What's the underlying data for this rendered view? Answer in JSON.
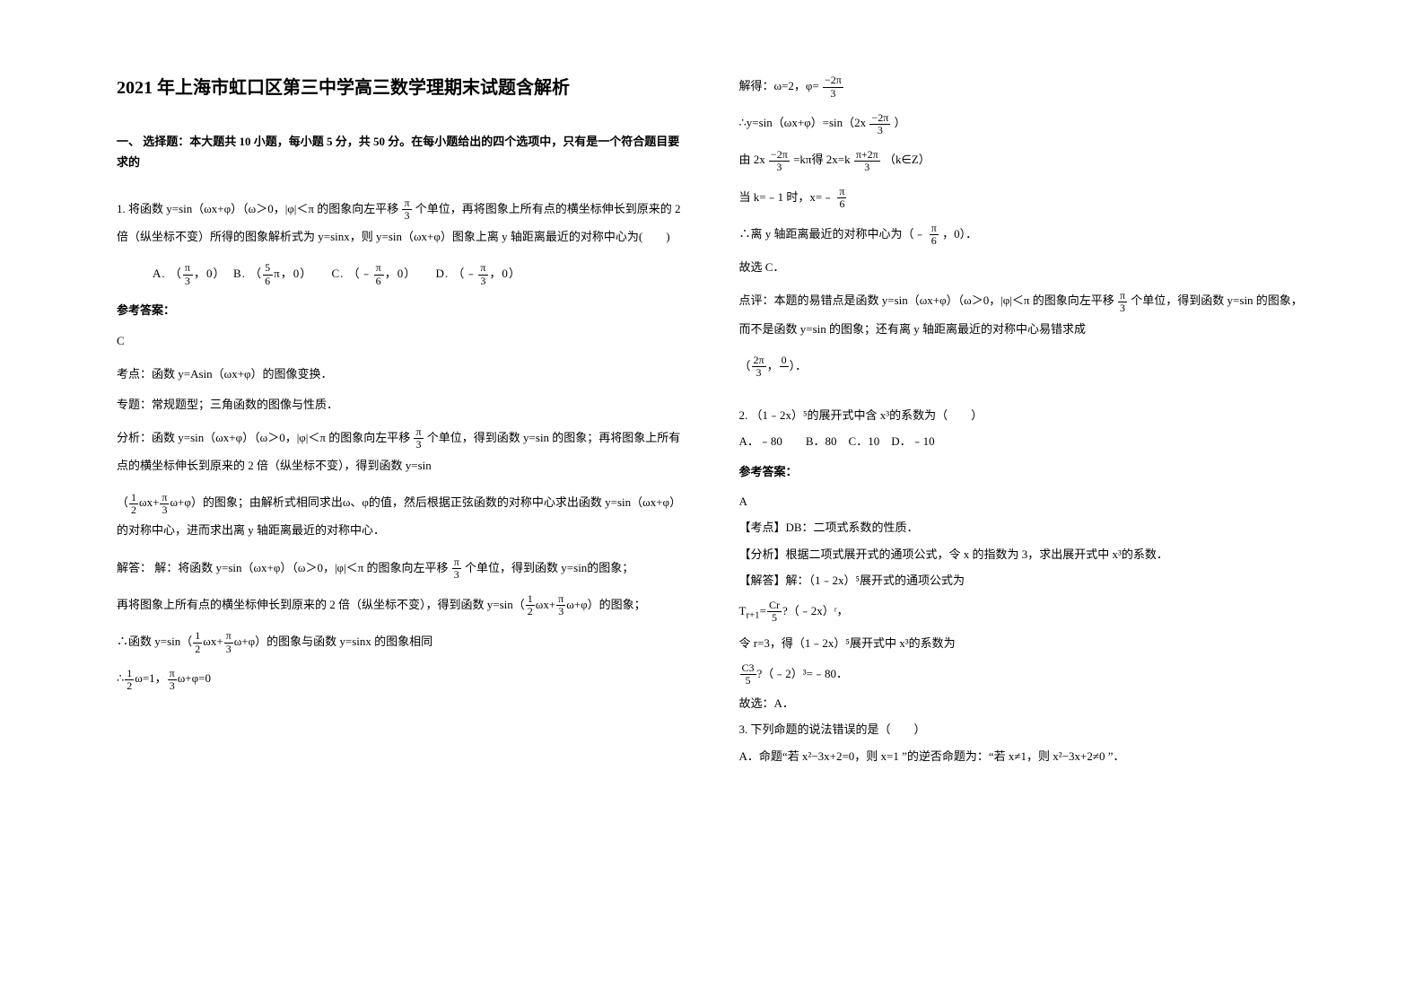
{
  "title": "2021 年上海市虹口区第三中学高三数学理期末试题含解析",
  "section1_header": "一、 选择题：本大题共 10 小题，每小题 5 分，共 50 分。在每小题给出的四个选项中，只有是一个符合题目要求的",
  "q1": {
    "stem_pre": "1. 将函数 y=sin（ωx+φ）（ω＞0，|φ|＜π 的图象向左平移",
    "stem_shift_num": "π",
    "stem_shift_den": "3",
    "stem_post": "个单位，再将图象上所有点的横坐标伸长到原来的 2 倍（纵坐标不变）所得的图象解析式为 y=sinx，则 y=sin（ωx+φ）图象上离 y 轴距离最近的对称中心为(　　)",
    "optA_pre": "A. （",
    "optA_num": "π",
    "optA_den": "3",
    "optA_post": "，0）",
    "optB_pre": "B. （",
    "optB_num": "5",
    "optB_den": "6",
    "optB_post": "π，0）",
    "optC_pre": "C. （﹣",
    "optC_num": "π",
    "optC_den": "6",
    "optC_post": "，0）",
    "optD_pre": "D. （﹣",
    "optD_num": "π",
    "optD_den": "3",
    "optD_post": "，0）",
    "answer_label": "参考答案：",
    "answer": "C",
    "kdian": "考点：函数 y=Asin（ωx+φ）的图像变换．",
    "zhuanti": "专题：常规题型；三角函数的图像与性质．",
    "fenxi_pre": "分析：函数 y=sin（ωx+φ）（ω＞0，|φ|＜π 的图象向左平移",
    "fenxi_num": "π",
    "fenxi_den": "3",
    "fenxi_post": "个单位，得到函数 y=sin 的图象；再将图象上所有点的横坐标伸长到原来的 2 倍（纵坐标不变），得到函数 y=sin",
    "fenxi2_pre": "（",
    "fenxi2_a_num": "1",
    "fenxi2_a_den": "2",
    "fenxi2_mid": "ωx+",
    "fenxi2_b_num": "π",
    "fenxi2_b_den": "3",
    "fenxi2_post": "ω+φ）的图象；由解析式相同求出ω、φ的值，然后根据正弦函数的对称中心求出函数 y=sin（ωx+φ）的对称中心，进而求出离 y 轴距离最近的对称中心．",
    "jieda_pre": "解答： 解：将函数 y=sin（ωx+φ）（ω＞0，|φ|＜π 的图象向左平移",
    "jieda_num": "π",
    "jieda_den": "3",
    "jieda_post": "个单位，得到函数 y=sin的图象；",
    "jieda2_pre": "再将图象上所有点的横坐标伸长到原来的 2 倍（纵坐标不变），得到函数 y=sin（",
    "jieda2_a_num": "1",
    "jieda2_a_den": "2",
    "jieda2_mid": "ωx+",
    "jieda2_b_num": "π",
    "jieda2_b_den": "3",
    "jieda2_post": "ω+φ）的图象；",
    "jieda3_pre": "∴函数 y=sin（",
    "jieda3_a_num": "1",
    "jieda3_a_den": "2",
    "jieda3_mid": "ωx+",
    "jieda3_b_num": "π",
    "jieda3_b_den": "3",
    "jieda3_post": "ω+φ）的图象与函数 y=sinx 的图象相同",
    "jieda4_pre": "∴",
    "jieda4_a_num": "1",
    "jieda4_a_den": "2",
    "jieda4_mid": "ω=1，",
    "jieda4_b_num": "π",
    "jieda4_b_den": "3",
    "jieda4_post": "ω+φ=0"
  },
  "col2": {
    "l1_pre": "解得：ω=2，φ=",
    "l1_num": "−2π",
    "l1_den": "3",
    "l2_pre": "∴y=sin（ωx+φ）=sin（2x",
    "l2_num": "−2π",
    "l2_den": "3",
    "l2_post": "）",
    "l3_pre": "由 2x",
    "l3a_num": "−2π",
    "l3a_den": "3",
    "l3_mid": "=kπ得 2x=k",
    "l3b_num": "π+2π",
    "l3b_den": "3",
    "l3_post": "（k∈Z）",
    "l4_pre": "当 k=﹣1 时，x=﹣",
    "l4_num": "π",
    "l4_den": "6",
    "l5_pre": "∴离 y 轴距离最近的对称中心为（﹣",
    "l5_num": "π",
    "l5_den": "6",
    "l5_post": "，0）．",
    "guxuan": "故选 C．",
    "dianping_pre": "点评：本题的易错点是函数 y=sin（ωx+φ）（ω＞0，|φ|＜π 的图象向左平移",
    "dianping_num": "π",
    "dianping_den": "3",
    "dianping_post": "个单位，得到函数 y=sin 的图象，而不是函数 y=sin 的图象；还有离 y 轴距离最近的对称中心易错求成",
    "dianping2_pre": "（",
    "dianping2_num": "2π",
    "dianping2_den": "3",
    "dianping2_mid": "，",
    "dianping2_0": "0",
    "dianping2_post": "）．"
  },
  "q2": {
    "stem": "2. （1﹣2x）⁵的展开式中含 x³的系数为（　　）",
    "opts": "A．﹣80　　B．80　C．10　D．﹣10",
    "answer_label": "参考答案：",
    "answer": "A",
    "kdian": "【考点】DB：二项式系数的性质．",
    "fenxi": "【分析】根据二项式展开式的通项公式，令 x 的指数为 3，求出展开式中 x³的系数．",
    "jieda": "【解答】解：（1﹣2x）⁵展开式的通项公式为",
    "t_pre": "T",
    "t_sub": "r+1",
    "t_eq": "=",
    "comb_pre": "C",
    "comb_up": "r",
    "comb_down": "5",
    "t_post": "?（﹣2x）ʳ，",
    "ling": "令 r=3，得（1﹣2x）⁵展开式中 x³的系数为",
    "c53_pre": "C",
    "c53_up": "3",
    "c53_down": "5",
    "c53_post": "?（﹣2）³=﹣80．",
    "guxuan": "故选：A．"
  },
  "q3": {
    "stem": "3. 下列命题的说法错误的是（　　）",
    "optA": "A．命题“若 x²−3x+2=0，则 x=1 ”的逆否命题为：“若 x≠1，则 x²−3x+2≠0 ”．"
  }
}
